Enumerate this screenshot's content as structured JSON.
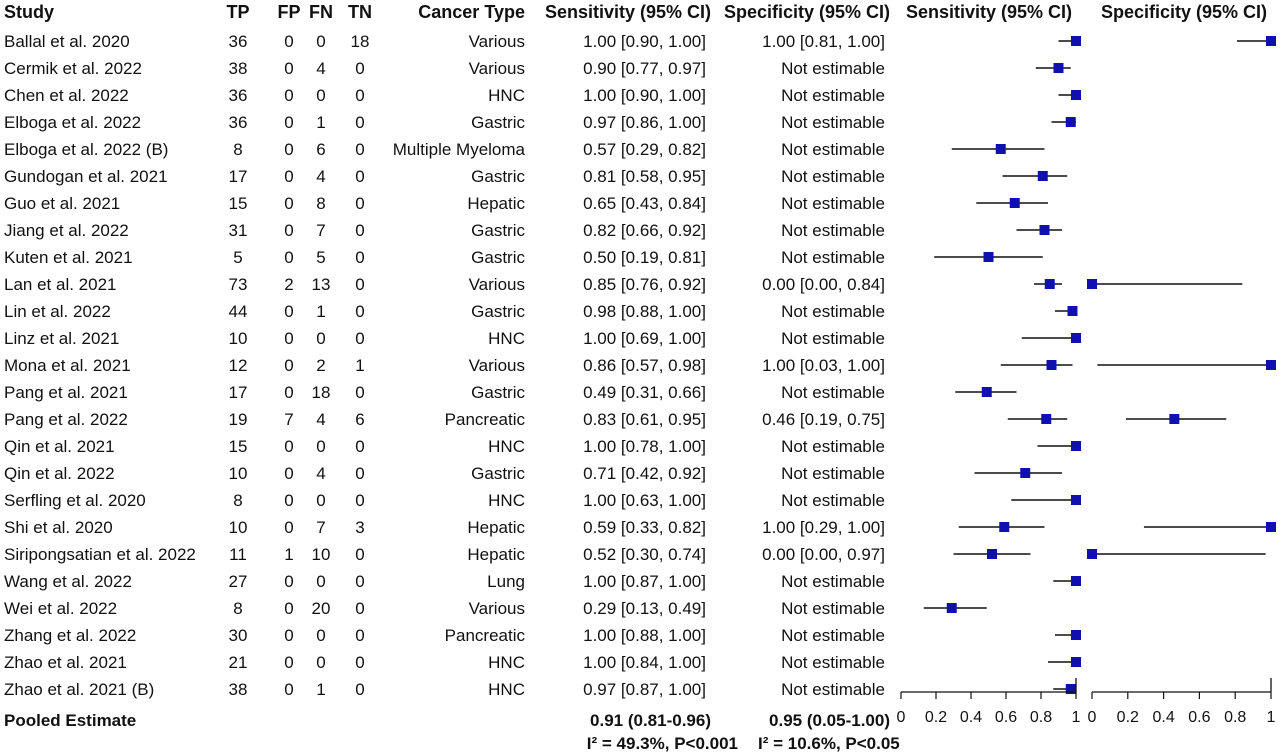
{
  "chart_data": {
    "type": "forest",
    "headers": {
      "study": "Study",
      "tp": "TP",
      "fp": "FP",
      "fn": "FN",
      "tn": "TN",
      "cancer": "Cancer Type",
      "sens_ci": "Sensitivity (95% CI)",
      "spec_ci": "Specificity (95% CI)",
      "sens_plot": "Sensitivity (95% CI)",
      "spec_plot": "Specificity (95% CI)"
    },
    "studies": [
      {
        "study": "Ballal et al. 2020",
        "tp": "36",
        "fp": "0",
        "fn": "0",
        "tn": "18",
        "cancer": "Various",
        "sens_text": "1.00 [0.90, 1.00]",
        "spec_text": "1.00 [0.81, 1.00]",
        "sens": [
          1.0,
          0.9,
          1.0
        ],
        "spec": [
          1.0,
          0.81,
          1.0
        ]
      },
      {
        "study": "Cermik et al. 2022",
        "tp": "38",
        "fp": "0",
        "fn": "4",
        "tn": "0",
        "cancer": "Various",
        "sens_text": "0.90 [0.77, 0.97]",
        "spec_text": "Not estimable",
        "sens": [
          0.9,
          0.77,
          0.97
        ],
        "spec": null
      },
      {
        "study": "Chen et al. 2022",
        "tp": "36",
        "fp": "0",
        "fn": "0",
        "tn": "0",
        "cancer": "HNC",
        "sens_text": "1.00 [0.90, 1.00]",
        "spec_text": "Not estimable",
        "sens": [
          1.0,
          0.9,
          1.0
        ],
        "spec": null
      },
      {
        "study": "Elboga et al. 2022",
        "tp": "36",
        "fp": "0",
        "fn": "1",
        "tn": "0",
        "cancer": "Gastric",
        "sens_text": "0.97 [0.86, 1.00]",
        "spec_text": "Not estimable",
        "sens": [
          0.97,
          0.86,
          1.0
        ],
        "spec": null
      },
      {
        "study": "Elboga et al. 2022 (B)",
        "tp": "8",
        "fp": "0",
        "fn": "6",
        "tn": "0",
        "cancer": "Multiple Myeloma",
        "sens_text": "0.57 [0.29, 0.82]",
        "spec_text": "Not estimable",
        "sens": [
          0.57,
          0.29,
          0.82
        ],
        "spec": null
      },
      {
        "study": "Gundogan et al. 2021",
        "tp": "17",
        "fp": "0",
        "fn": "4",
        "tn": "0",
        "cancer": "Gastric",
        "sens_text": "0.81 [0.58, 0.95]",
        "spec_text": "Not estimable",
        "sens": [
          0.81,
          0.58,
          0.95
        ],
        "spec": null
      },
      {
        "study": "Guo et al. 2021",
        "tp": "15",
        "fp": "0",
        "fn": "8",
        "tn": "0",
        "cancer": "Hepatic",
        "sens_text": "0.65 [0.43, 0.84]",
        "spec_text": "Not estimable",
        "sens": [
          0.65,
          0.43,
          0.84
        ],
        "spec": null
      },
      {
        "study": "Jiang et al. 2022",
        "tp": "31",
        "fp": "0",
        "fn": "7",
        "tn": "0",
        "cancer": "Gastric",
        "sens_text": "0.82 [0.66, 0.92]",
        "spec_text": "Not estimable",
        "sens": [
          0.82,
          0.66,
          0.92
        ],
        "spec": null
      },
      {
        "study": "Kuten et al. 2021",
        "tp": "5",
        "fp": "0",
        "fn": "5",
        "tn": "0",
        "cancer": "Gastric",
        "sens_text": "0.50 [0.19, 0.81]",
        "spec_text": "Not estimable",
        "sens": [
          0.5,
          0.19,
          0.81
        ],
        "spec": null
      },
      {
        "study": "Lan et al. 2021",
        "tp": "73",
        "fp": "2",
        "fn": "13",
        "tn": "0",
        "cancer": "Various",
        "sens_text": "0.85 [0.76, 0.92]",
        "spec_text": "0.00 [0.00, 0.84]",
        "sens": [
          0.85,
          0.76,
          0.92
        ],
        "spec": [
          0.0,
          0.0,
          0.84
        ]
      },
      {
        "study": "Lin et al. 2022",
        "tp": "44",
        "fp": "0",
        "fn": "1",
        "tn": "0",
        "cancer": "Gastric",
        "sens_text": "0.98 [0.88, 1.00]",
        "spec_text": "Not estimable",
        "sens": [
          0.98,
          0.88,
          1.0
        ],
        "spec": null
      },
      {
        "study": "Linz et al. 2021",
        "tp": "10",
        "fp": "0",
        "fn": "0",
        "tn": "0",
        "cancer": "HNC",
        "sens_text": "1.00 [0.69, 1.00]",
        "spec_text": "Not estimable",
        "sens": [
          1.0,
          0.69,
          1.0
        ],
        "spec": null
      },
      {
        "study": "Mona et al. 2021",
        "tp": "12",
        "fp": "0",
        "fn": "2",
        "tn": "1",
        "cancer": "Various",
        "sens_text": "0.86 [0.57, 0.98]",
        "spec_text": "1.00 [0.03, 1.00]",
        "sens": [
          0.86,
          0.57,
          0.98
        ],
        "spec": [
          1.0,
          0.03,
          1.0
        ]
      },
      {
        "study": "Pang et al. 2021",
        "tp": "17",
        "fp": "0",
        "fn": "18",
        "tn": "0",
        "cancer": "Gastric",
        "sens_text": "0.49 [0.31, 0.66]",
        "spec_text": "Not estimable",
        "sens": [
          0.49,
          0.31,
          0.66
        ],
        "spec": null
      },
      {
        "study": "Pang et al. 2022",
        "tp": "19",
        "fp": "7",
        "fn": "4",
        "tn": "6",
        "cancer": "Pancreatic",
        "sens_text": "0.83 [0.61, 0.95]",
        "spec_text": "0.46 [0.19, 0.75]",
        "sens": [
          0.83,
          0.61,
          0.95
        ],
        "spec": [
          0.46,
          0.19,
          0.75
        ]
      },
      {
        "study": "Qin et al. 2021",
        "tp": "15",
        "fp": "0",
        "fn": "0",
        "tn": "0",
        "cancer": "HNC",
        "sens_text": "1.00 [0.78, 1.00]",
        "spec_text": "Not estimable",
        "sens": [
          1.0,
          0.78,
          1.0
        ],
        "spec": null
      },
      {
        "study": "Qin et al. 2022",
        "tp": "10",
        "fp": "0",
        "fn": "4",
        "tn": "0",
        "cancer": "Gastric",
        "sens_text": "0.71 [0.42, 0.92]",
        "spec_text": "Not estimable",
        "sens": [
          0.71,
          0.42,
          0.92
        ],
        "spec": null
      },
      {
        "study": "Serfling et al. 2020",
        "tp": "8",
        "fp": "0",
        "fn": "0",
        "tn": "0",
        "cancer": "HNC",
        "sens_text": "1.00 [0.63, 1.00]",
        "spec_text": "Not estimable",
        "sens": [
          1.0,
          0.63,
          1.0
        ],
        "spec": null
      },
      {
        "study": "Shi et al. 2020",
        "tp": "10",
        "fp": "0",
        "fn": "7",
        "tn": "3",
        "cancer": "Hepatic",
        "sens_text": "0.59 [0.33, 0.82]",
        "spec_text": "1.00 [0.29, 1.00]",
        "sens": [
          0.59,
          0.33,
          0.82
        ],
        "spec": [
          1.0,
          0.29,
          1.0
        ]
      },
      {
        "study": "Siripongsatian et al. 2022",
        "tp": "11",
        "fp": "1",
        "fn": "10",
        "tn": "0",
        "cancer": "Hepatic",
        "sens_text": "0.52 [0.30, 0.74]",
        "spec_text": "0.00 [0.00, 0.97]",
        "sens": [
          0.52,
          0.3,
          0.74
        ],
        "spec": [
          0.0,
          0.0,
          0.97
        ]
      },
      {
        "study": "Wang et al. 2022",
        "tp": "27",
        "fp": "0",
        "fn": "0",
        "tn": "0",
        "cancer": "Lung",
        "sens_text": "1.00 [0.87, 1.00]",
        "spec_text": "Not estimable",
        "sens": [
          1.0,
          0.87,
          1.0
        ],
        "spec": null
      },
      {
        "study": "Wei et al. 2022",
        "tp": "8",
        "fp": "0",
        "fn": "20",
        "tn": "0",
        "cancer": "Various",
        "sens_text": "0.29 [0.13, 0.49]",
        "spec_text": "Not estimable",
        "sens": [
          0.29,
          0.13,
          0.49
        ],
        "spec": null
      },
      {
        "study": "Zhang et al. 2022",
        "tp": "30",
        "fp": "0",
        "fn": "0",
        "tn": "0",
        "cancer": "Pancreatic",
        "sens_text": "1.00 [0.88, 1.00]",
        "spec_text": "Not estimable",
        "sens": [
          1.0,
          0.88,
          1.0
        ],
        "spec": null
      },
      {
        "study": "Zhao et al. 2021",
        "tp": "21",
        "fp": "0",
        "fn": "0",
        "tn": "0",
        "cancer": "HNC",
        "sens_text": "1.00 [0.84, 1.00]",
        "spec_text": "Not estimable",
        "sens": [
          1.0,
          0.84,
          1.0
        ],
        "spec": null
      },
      {
        "study": "Zhao et al. 2021 (B)",
        "tp": "38",
        "fp": "0",
        "fn": "1",
        "tn": "0",
        "cancer": "HNC",
        "sens_text": "0.97 [0.87, 1.00]",
        "spec_text": "Not estimable",
        "sens": [
          0.97,
          0.87,
          1.0
        ],
        "spec": null
      }
    ],
    "pooled": {
      "label": "Pooled Estimate",
      "sens_text": "0.91 (0.81-0.96)",
      "spec_text": "0.95 (0.05-1.00)",
      "sens_het": "I² = 49.3%, P<0.001",
      "spec_het": "I² = 10.6%, P<0.05"
    },
    "axis": {
      "range": [
        0,
        1
      ],
      "ticks": [
        0,
        0.2,
        0.4,
        0.6,
        0.8,
        1
      ],
      "tick_labels": [
        "0",
        "0.2",
        "0.4",
        "0.6",
        "0.8",
        "1"
      ]
    },
    "colors": {
      "marker": "#1010b0",
      "line": "#111111"
    }
  }
}
